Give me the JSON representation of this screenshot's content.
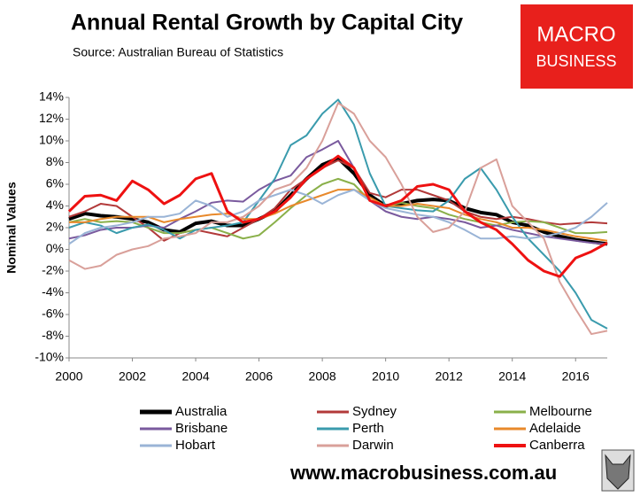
{
  "chart_data": {
    "type": "line",
    "title": "Annual Rental Growth by Capital City",
    "subtitle": "Source: Australian Bureau of Statistics",
    "y_label": "Nominal Values",
    "x": [
      2000,
      2000.5,
      2001,
      2001.5,
      2002,
      2002.5,
      2003,
      2003.5,
      2004,
      2004.5,
      2005,
      2005.5,
      2006,
      2006.5,
      2007,
      2007.5,
      2008,
      2008.5,
      2009,
      2009.5,
      2010,
      2010.5,
      2011,
      2011.5,
      2012,
      2012.5,
      2013,
      2013.5,
      2014,
      2014.5,
      2015,
      2015.5,
      2016,
      2016.5,
      2017
    ],
    "series": [
      {
        "name": "Australia",
        "color": "#000000",
        "width": 4,
        "values": [
          2.8,
          3.3,
          3.1,
          3.0,
          2.8,
          2.5,
          1.8,
          1.6,
          2.4,
          2.6,
          2.2,
          2.2,
          2.8,
          3.5,
          5.0,
          6.5,
          7.8,
          8.4,
          7.0,
          5.0,
          4.0,
          4.2,
          4.5,
          4.6,
          4.5,
          3.8,
          3.4,
          3.2,
          2.5,
          2.2,
          1.6,
          1.2,
          0.9,
          0.7,
          0.5
        ]
      },
      {
        "name": "Sydney",
        "color": "#b23a3a",
        "width": 2,
        "values": [
          3.0,
          3.5,
          4.2,
          4.0,
          3.0,
          2.0,
          0.8,
          1.5,
          1.8,
          1.5,
          1.2,
          2.0,
          2.8,
          3.8,
          5.5,
          6.5,
          7.5,
          8.2,
          7.5,
          5.2,
          4.8,
          5.5,
          5.5,
          5.0,
          4.5,
          3.5,
          3.0,
          2.8,
          3.0,
          2.8,
          2.5,
          2.3,
          2.4,
          2.5,
          2.4
        ]
      },
      {
        "name": "Melbourne",
        "color": "#8ab04a",
        "width": 2,
        "values": [
          2.5,
          2.8,
          2.5,
          2.6,
          2.5,
          2.0,
          1.5,
          1.5,
          1.8,
          2.0,
          1.5,
          1.0,
          1.3,
          2.5,
          3.8,
          5.0,
          6.0,
          6.5,
          6.0,
          4.5,
          4.0,
          4.3,
          4.0,
          3.8,
          3.2,
          2.8,
          2.5,
          2.2,
          2.5,
          2.6,
          2.5,
          2.0,
          1.5,
          1.5,
          1.6
        ]
      },
      {
        "name": "Brisbane",
        "color": "#7a5a9e",
        "width": 2,
        "values": [
          1.0,
          1.3,
          1.8,
          2.0,
          2.0,
          2.2,
          2.0,
          2.8,
          3.5,
          4.3,
          4.5,
          4.4,
          5.5,
          6.3,
          6.8,
          8.5,
          9.2,
          10.0,
          7.5,
          4.5,
          3.5,
          3.0,
          2.8,
          3.0,
          2.8,
          2.5,
          2.0,
          2.2,
          1.8,
          1.5,
          1.2,
          1.0,
          0.8,
          0.6,
          0.5
        ]
      },
      {
        "name": "Perth",
        "color": "#3a9bad",
        "width": 2,
        "values": [
          2.0,
          2.5,
          2.2,
          1.5,
          2.0,
          2.3,
          1.8,
          1.0,
          1.8,
          2.0,
          2.2,
          2.5,
          4.5,
          6.5,
          9.6,
          10.5,
          12.5,
          13.8,
          11.5,
          7.0,
          4.0,
          3.8,
          3.6,
          3.5,
          4.5,
          6.5,
          7.5,
          5.5,
          3.0,
          1.0,
          -0.5,
          -2.0,
          -4.0,
          -6.5,
          -7.3
        ]
      },
      {
        "name": "Adelaide",
        "color": "#e8892b",
        "width": 2,
        "values": [
          2.5,
          2.5,
          2.8,
          3.0,
          3.0,
          3.0,
          2.5,
          2.8,
          3.0,
          3.2,
          3.3,
          2.8,
          2.8,
          3.3,
          4.0,
          4.5,
          5.0,
          5.5,
          5.5,
          4.8,
          4.0,
          4.0,
          4.2,
          4.0,
          3.8,
          3.2,
          2.8,
          2.5,
          2.0,
          2.0,
          1.8,
          1.5,
          1.2,
          1.0,
          0.8
        ]
      },
      {
        "name": "Hobart",
        "color": "#9ab4d6",
        "width": 2,
        "values": [
          0.5,
          1.5,
          2.0,
          2.2,
          2.5,
          3.0,
          3.0,
          3.3,
          4.5,
          4.0,
          3.0,
          3.5,
          4.5,
          5.0,
          5.5,
          5.0,
          4.2,
          5.0,
          5.5,
          4.5,
          3.8,
          3.5,
          3.2,
          3.0,
          2.5,
          1.8,
          1.0,
          1.0,
          1.2,
          1.0,
          1.2,
          1.5,
          2.0,
          3.0,
          4.3
        ]
      },
      {
        "name": "Darwin",
        "color": "#d9a09a",
        "width": 2,
        "values": [
          -1.0,
          -1.8,
          -1.5,
          -0.5,
          0.0,
          0.3,
          1.0,
          1.2,
          1.5,
          2.5,
          2.5,
          3.0,
          4.0,
          5.5,
          6.0,
          7.5,
          10.0,
          13.5,
          12.5,
          10.0,
          8.5,
          6.0,
          3.0,
          1.6,
          2.0,
          3.5,
          7.5,
          8.3,
          4.0,
          2.5,
          1.0,
          -3.0,
          -5.5,
          -7.8,
          -7.5
        ]
      },
      {
        "name": "Canberra",
        "color": "#ee1111",
        "width": 3,
        "values": [
          3.5,
          4.9,
          5.0,
          4.5,
          6.3,
          5.5,
          4.2,
          5.0,
          6.5,
          7.0,
          3.5,
          2.5,
          2.8,
          3.5,
          4.8,
          6.5,
          7.5,
          8.6,
          7.5,
          4.5,
          4.0,
          4.5,
          5.8,
          6.0,
          5.5,
          3.5,
          2.5,
          1.8,
          0.5,
          -1.0,
          -2.0,
          -2.5,
          -0.8,
          -0.2,
          0.6
        ]
      }
    ],
    "xlim": [
      2000,
      2017
    ],
    "ylim": [
      -10,
      14
    ],
    "xticks": [
      2000,
      2002,
      2004,
      2006,
      2008,
      2010,
      2012,
      2014,
      2016
    ],
    "yticks": [
      {
        "value": -10,
        "label": "-10%"
      },
      {
        "value": -8,
        "label": "-8%"
      },
      {
        "value": -6,
        "label": "-6%"
      },
      {
        "value": -4,
        "label": "-4%"
      },
      {
        "value": -2,
        "label": "-2%"
      },
      {
        "value": 0,
        "label": "0%"
      },
      {
        "value": 2,
        "label": "2%"
      },
      {
        "value": 4,
        "label": "4%"
      },
      {
        "value": 6,
        "label": "6%"
      },
      {
        "value": 8,
        "label": "8%"
      },
      {
        "value": 10,
        "label": "10%"
      },
      {
        "value": 12,
        "label": "12%"
      },
      {
        "value": 14,
        "label": "14%"
      }
    ],
    "grid": false
  },
  "branding": {
    "logo": [
      "MACRO",
      "BUSINESS"
    ],
    "website": "www.macrobusiness.com.au"
  }
}
